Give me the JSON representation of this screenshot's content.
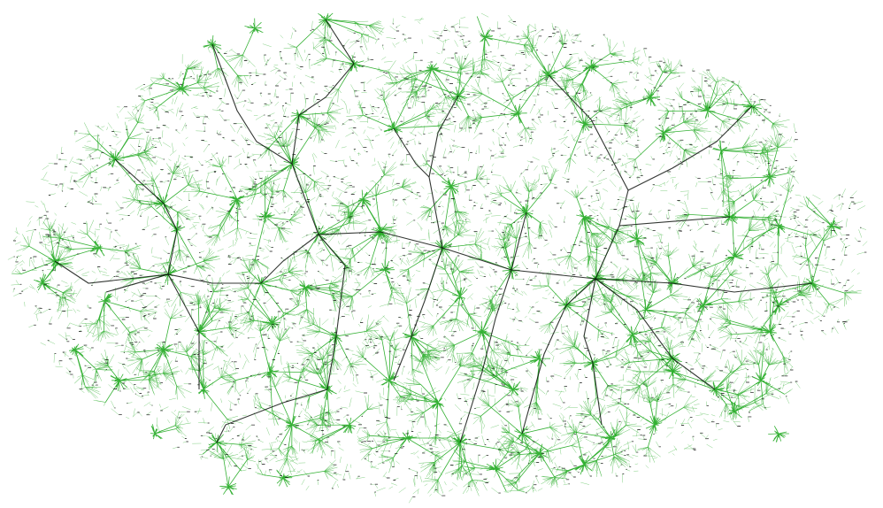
{
  "diagram": {
    "type": "network-graph",
    "layout": "radial-tree",
    "title": "",
    "background_color": "#ffffff",
    "colors": {
      "leaf_edge": "#3cb43c",
      "hub_spoke": "#1fa81f",
      "backbone_edge": "#0f140f",
      "node_label": "#1c1c1c"
    },
    "node_labels_legible": false
  }
}
